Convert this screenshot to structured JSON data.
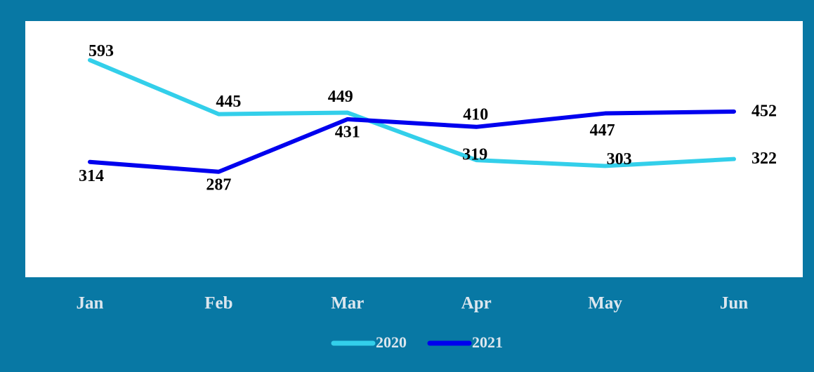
{
  "chart_data": {
    "type": "line",
    "categories": [
      "Jan",
      "Feb",
      "Mar",
      "Apr",
      "May",
      "Jun"
    ],
    "series": [
      {
        "name": "2020",
        "color": "#33cfea",
        "values": [
          593,
          445,
          449,
          319,
          303,
          322
        ]
      },
      {
        "name": "2021",
        "color": "#0000ee",
        "values": [
          314,
          287,
          431,
          410,
          447,
          452
        ]
      }
    ],
    "ylim": [
      0,
      700
    ]
  }
}
